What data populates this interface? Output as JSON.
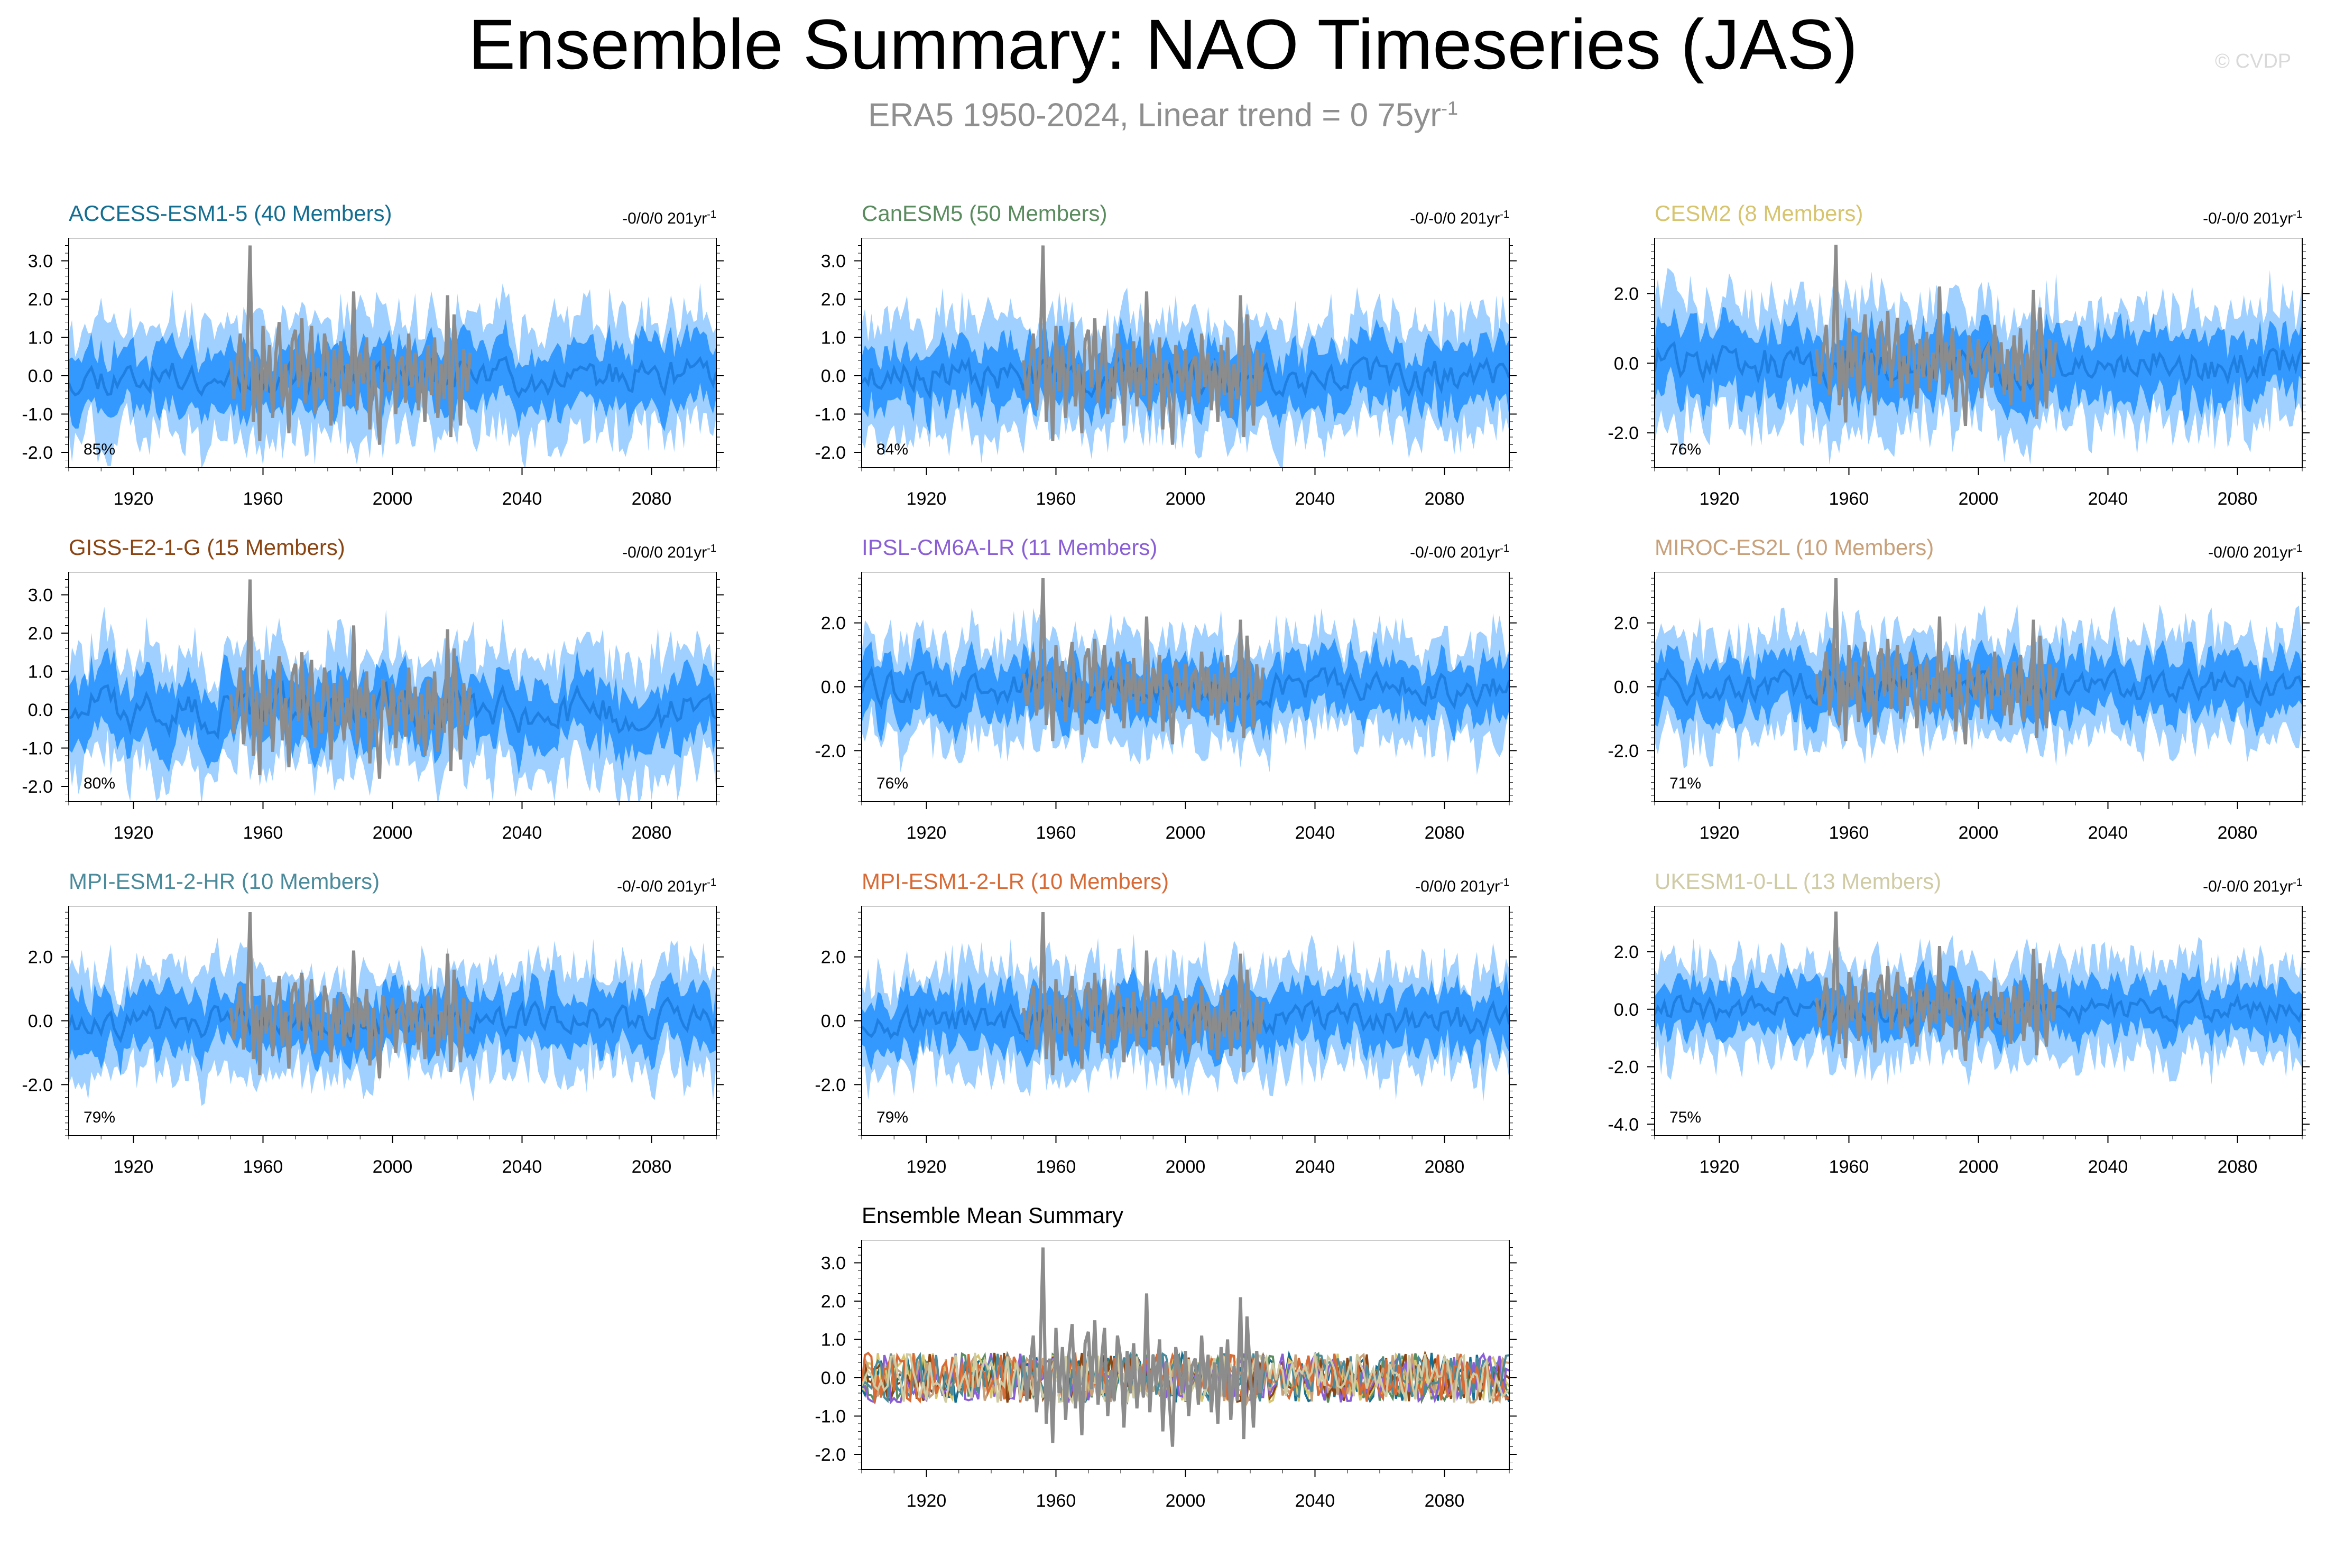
{
  "header": {
    "title": "Ensemble Summary: NAO Timeseries (JAS)",
    "subtitle_base": "ERA5 1950-2024, Linear trend = 0 75yr",
    "subtitle_sup": "-1",
    "credit": "© CVDP"
  },
  "colors": {
    "outer_band": "#9fd0ff",
    "inner_band": "#3399ff",
    "ensemble_mean_line": "#1e7fe0",
    "observations": "#8c8c8c"
  },
  "chart_data": [
    {
      "id": "p0",
      "type": "area",
      "title": "ACCESS-ESM1-5 (40 Members)",
      "title_color": "#146e91",
      "trend": "-0/0/0 201yr",
      "trend_sup": "-1",
      "percent": "85%",
      "ylim": [
        -2.4,
        3.6
      ],
      "yticks": [
        3.0,
        2.0,
        1.0,
        0.0,
        -1.0,
        -2.0
      ],
      "ytick_labels": [
        "3.0",
        "2.0",
        "1.0",
        "0.0",
        "-1.0",
        "-2.0"
      ],
      "xlim": [
        1900,
        2100
      ],
      "xticks": [
        1920,
        1960,
        2000,
        2040,
        2080
      ],
      "amp": 0.45,
      "band1": 0.75,
      "band2": 1.45,
      "seed": 11
    },
    {
      "id": "p1",
      "type": "area",
      "title": "CanESM5 (50 Members)",
      "title_color": "#5a8c5f",
      "trend": "-0/-0/0 201yr",
      "trend_sup": "-1",
      "percent": "84%",
      "ylim": [
        -2.4,
        3.6
      ],
      "yticks": [
        3.0,
        2.0,
        1.0,
        0.0,
        -1.0,
        -2.0
      ],
      "ytick_labels": [
        "3.0",
        "2.0",
        "1.0",
        "0.0",
        "-1.0",
        "-2.0"
      ],
      "xlim": [
        1900,
        2100
      ],
      "xticks": [
        1920,
        1960,
        2000,
        2040,
        2080
      ],
      "amp": 0.45,
      "band1": 0.75,
      "band2": 1.45,
      "seed": 23
    },
    {
      "id": "p2",
      "type": "area",
      "title": "CESM2 (8 Members)",
      "title_color": "#d7c46e",
      "trend": "-0/-0/0 201yr",
      "trend_sup": "-1",
      "percent": "76%",
      "ylim": [
        -3.0,
        3.6
      ],
      "yticks": [
        2.0,
        0.0,
        -2.0
      ],
      "ytick_labels": [
        "2.0",
        "0.0",
        "-2.0"
      ],
      "xlim": [
        1900,
        2100
      ],
      "xticks": [
        1920,
        1960,
        2000,
        2040,
        2080
      ],
      "amp": 0.6,
      "band1": 0.9,
      "band2": 1.7,
      "seed": 35
    },
    {
      "id": "p3",
      "type": "area",
      "title": "GISS-E2-1-G (15 Members)",
      "title_color": "#8b4513",
      "trend": "-0/0/0 201yr",
      "trend_sup": "-1",
      "percent": "80%",
      "ylim": [
        -2.4,
        3.6
      ],
      "yticks": [
        3.0,
        2.0,
        1.0,
        0.0,
        -1.0,
        -2.0
      ],
      "ytick_labels": [
        "3.0",
        "2.0",
        "1.0",
        "0.0",
        "-1.0",
        "-2.0"
      ],
      "xlim": [
        1900,
        2100
      ],
      "xticks": [
        1920,
        1960,
        2000,
        2040,
        2080
      ],
      "amp": 0.55,
      "band1": 0.8,
      "band2": 1.5,
      "seed": 47
    },
    {
      "id": "p4",
      "type": "area",
      "title": "IPSL-CM6A-LR (11 Members)",
      "title_color": "#8a5fd6",
      "trend": "-0/-0/0 201yr",
      "trend_sup": "-1",
      "percent": "76%",
      "ylim": [
        -3.6,
        3.6
      ],
      "yticks": [
        2.0,
        0.0,
        -2.0
      ],
      "ytick_labels": [
        "2.0",
        "0.0",
        "-2.0"
      ],
      "xlim": [
        1900,
        2100
      ],
      "xticks": [
        1920,
        1960,
        2000,
        2040,
        2080
      ],
      "amp": 0.5,
      "band1": 0.85,
      "band2": 1.6,
      "seed": 59
    },
    {
      "id": "p5",
      "type": "area",
      "title": "MIROC-ES2L (10 Members)",
      "title_color": "#c8a07a",
      "trend": "-0/0/0 201yr",
      "trend_sup": "-1",
      "percent": "71%",
      "ylim": [
        -3.6,
        3.6
      ],
      "yticks": [
        2.0,
        0.0,
        -2.0
      ],
      "ytick_labels": [
        "2.0",
        "0.0",
        "-2.0"
      ],
      "xlim": [
        1900,
        2100
      ],
      "xticks": [
        1920,
        1960,
        2000,
        2040,
        2080
      ],
      "amp": 0.5,
      "band1": 0.85,
      "band2": 1.6,
      "seed": 71
    },
    {
      "id": "p6",
      "type": "area",
      "title": "MPI-ESM1-2-HR (10 Members)",
      "title_color": "#4a8a9a",
      "trend": "-0/-0/0 201yr",
      "trend_sup": "-1",
      "percent": "79%",
      "ylim": [
        -3.6,
        3.6
      ],
      "yticks": [
        2.0,
        0.0,
        -2.0
      ],
      "ytick_labels": [
        "2.0",
        "0.0",
        "-2.0"
      ],
      "xlim": [
        1900,
        2100
      ],
      "xticks": [
        1920,
        1960,
        2000,
        2040,
        2080
      ],
      "amp": 0.5,
      "band1": 0.85,
      "band2": 1.6,
      "seed": 83
    },
    {
      "id": "p7",
      "type": "area",
      "title": "MPI-ESM1-2-LR (10 Members)",
      "title_color": "#d86a35",
      "trend": "-0/0/0 201yr",
      "trend_sup": "-1",
      "percent": "79%",
      "ylim": [
        -3.6,
        3.6
      ],
      "yticks": [
        2.0,
        0.0,
        -2.0
      ],
      "ytick_labels": [
        "2.0",
        "0.0",
        "-2.0"
      ],
      "xlim": [
        1900,
        2100
      ],
      "xticks": [
        1920,
        1960,
        2000,
        2040,
        2080
      ],
      "amp": 0.5,
      "band1": 0.85,
      "band2": 1.6,
      "seed": 97
    },
    {
      "id": "p8",
      "type": "area",
      "title": "UKESM1-0-LL (13 Members)",
      "title_color": "#cfcba5",
      "trend": "-0/-0/0 201yr",
      "trend_sup": "-1",
      "percent": "75%",
      "ylim": [
        -4.4,
        3.6
      ],
      "yticks": [
        2.0,
        0.0,
        -2.0,
        -4.0
      ],
      "ytick_labels": [
        "2.0",
        "0.0",
        "-2.0",
        "-4.0"
      ],
      "xlim": [
        1900,
        2100
      ],
      "xticks": [
        1920,
        1960,
        2000,
        2040,
        2080
      ],
      "amp": 0.5,
      "band1": 0.85,
      "band2": 1.6,
      "seed": 109
    },
    {
      "id": "p9",
      "type": "line",
      "title": "Ensemble Mean Summary",
      "title_color": "#000000",
      "trend": "",
      "trend_sup": "",
      "percent": "",
      "ylim": [
        -2.4,
        3.6
      ],
      "yticks": [
        3.0,
        2.0,
        1.0,
        0.0,
        -1.0,
        -2.0
      ],
      "ytick_labels": [
        "3.0",
        "2.0",
        "1.0",
        "0.0",
        "-1.0",
        "-2.0"
      ],
      "xlim": [
        1900,
        2100
      ],
      "xticks": [
        1920,
        1960,
        2000,
        2040,
        2080
      ],
      "amp": 0.3,
      "band1": 0,
      "band2": 0,
      "seed": 131,
      "series_colors": [
        "#146e91",
        "#5a8c5f",
        "#d7c46e",
        "#8b4513",
        "#8a5fd6",
        "#c8a07a",
        "#4a8a9a",
        "#d86a35",
        "#cfcba5"
      ]
    }
  ],
  "observations": {
    "name": "ERA5",
    "years": [
      1950,
      1951,
      1952,
      1953,
      1954,
      1955,
      1956,
      1957,
      1958,
      1959,
      1960,
      1961,
      1962,
      1963,
      1964,
      1965,
      1966,
      1967,
      1968,
      1969,
      1970,
      1971,
      1972,
      1973,
      1974,
      1975,
      1976,
      1977,
      1978,
      1979,
      1980,
      1981,
      1982,
      1983,
      1984,
      1985,
      1986,
      1987,
      1988,
      1989,
      1990,
      1991,
      1992,
      1993,
      1994,
      1995,
      1996,
      1997,
      1998,
      1999,
      2000,
      2001,
      2002,
      2003,
      2004,
      2005,
      2006,
      2007,
      2008,
      2009,
      2010,
      2011,
      2012,
      2013,
      2014,
      2015,
      2016,
      2017,
      2018,
      2019,
      2020,
      2021,
      2022,
      2023,
      2024
    ],
    "values": [
      0.4,
      -0.6,
      0.3,
      1.1,
      -0.9,
      0.2,
      3.4,
      -1.2,
      0.5,
      -1.7,
      1.3,
      -0.4,
      0.8,
      -1.1,
      0.6,
      1.4,
      -0.8,
      0.3,
      -1.5,
      0.9,
      1.2,
      -0.3,
      1.5,
      -0.7,
      0.4,
      1.3,
      -1.0,
      0.2,
      -0.6,
      1.1,
      0.5,
      -1.3,
      0.7,
      -0.4,
      0.9,
      -0.8,
      0.3,
      -0.5,
      2.2,
      -0.9,
      0.6,
      -0.2,
      1.0,
      -1.4,
      0.4,
      -0.6,
      -1.8,
      0.8,
      0.2,
      -0.4,
      0.7,
      -1.0,
      0.3,
      0.5,
      -0.7,
      1.1,
      -0.3,
      0.6,
      -0.9,
      0.4,
      -1.2,
      0.8,
      -0.5,
      1.0,
      -1.1,
      0.3,
      -0.6,
      2.1,
      -1.6,
      1.6,
      0.2,
      -1.3,
      0.7,
      -0.4,
      0.6
    ]
  }
}
